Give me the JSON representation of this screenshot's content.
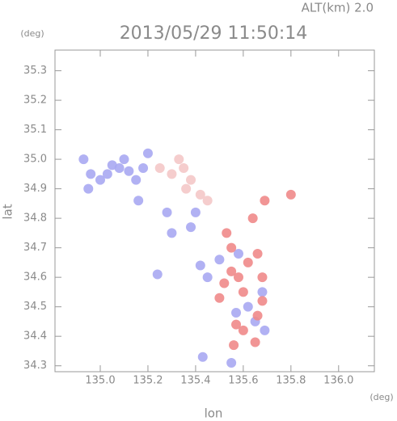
{
  "chart_data": {
    "type": "scatter",
    "title": "2013/05/29 11:50:14",
    "subtitle": "ALT(km) 2.0",
    "y_unit": "(deg)",
    "x_unit": "(deg)",
    "y_label": "lat",
    "x_label": "lon",
    "xlim": [
      134.81,
      136.15
    ],
    "ylim": [
      34.28,
      35.37
    ],
    "xticks": [
      {
        "value": 135.0,
        "label": "135.0"
      },
      {
        "value": 135.2,
        "label": "135.2"
      },
      {
        "value": 135.4,
        "label": "135.4"
      },
      {
        "value": 135.6,
        "label": "135.6"
      },
      {
        "value": 135.8,
        "label": "135.8"
      },
      {
        "value": 136.0,
        "label": "136.0"
      }
    ],
    "yticks": [
      34.3,
      34.4,
      34.5,
      34.6,
      34.7,
      34.8,
      34.9,
      {
        "value": 35.0,
        "label": "35.0"
      },
      35.1,
      35.2,
      35.3
    ],
    "series": [
      {
        "color": "#a9a9f2",
        "x": [
          134.93,
          134.96,
          135.0,
          135.03,
          134.95,
          135.05,
          135.08,
          135.12,
          135.15,
          135.18,
          135.2,
          135.1,
          135.16,
          135.28,
          135.3,
          135.24,
          135.42,
          135.45,
          135.38,
          135.4,
          135.55,
          135.57,
          135.62,
          135.65,
          135.69,
          135.5,
          135.58,
          135.68,
          135.43
        ],
        "values": [
          35.0,
          34.95,
          34.93,
          34.95,
          34.9,
          34.98,
          34.97,
          34.96,
          34.93,
          34.97,
          35.02,
          35.0,
          34.86,
          34.82,
          34.75,
          34.61,
          34.64,
          34.6,
          34.77,
          34.82,
          34.31,
          34.48,
          34.5,
          34.45,
          34.42,
          34.66,
          34.68,
          34.55,
          34.33
        ]
      },
      {
        "color": "#f08a8a",
        "x": [
          135.55,
          135.52,
          135.58,
          135.6,
          135.55,
          135.62,
          135.66,
          135.68,
          135.57,
          135.6,
          135.66,
          135.68,
          135.53,
          135.64,
          135.69,
          135.8,
          135.5,
          135.56,
          135.65
        ],
        "values": [
          34.62,
          34.58,
          34.6,
          34.55,
          34.7,
          34.65,
          34.68,
          34.6,
          34.44,
          34.42,
          34.47,
          34.52,
          34.75,
          34.8,
          34.86,
          34.88,
          34.53,
          34.37,
          34.38
        ]
      },
      {
        "color": "#f4c8c8",
        "x": [
          135.25,
          135.3,
          135.35,
          135.38,
          135.36,
          135.42,
          135.45,
          135.33
        ],
        "values": [
          34.97,
          34.95,
          34.97,
          34.93,
          34.9,
          34.88,
          34.86,
          35.0
        ]
      }
    ]
  }
}
